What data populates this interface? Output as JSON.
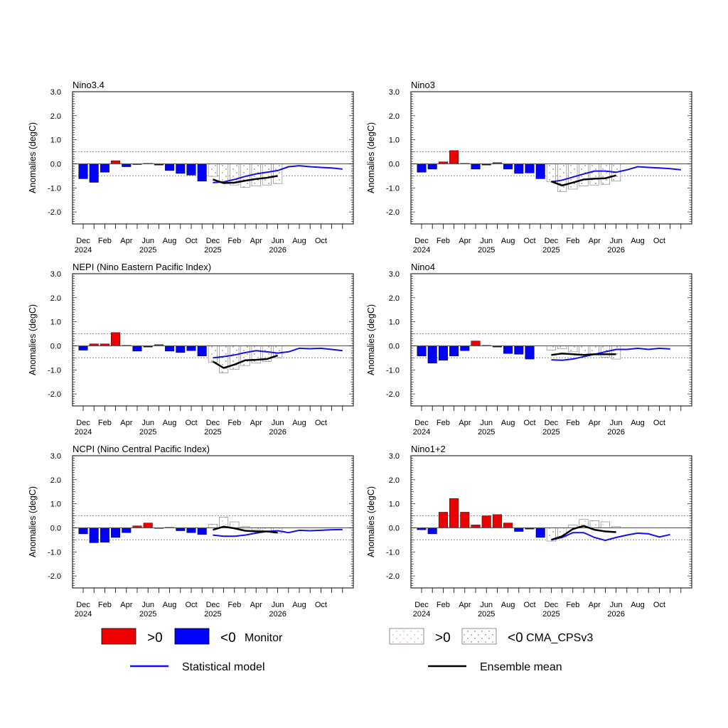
{
  "x_ticks": {
    "months": [
      "Dec",
      "Feb",
      "Apr",
      "Jun",
      "Aug",
      "Oct",
      "Dec",
      "Feb",
      "Apr",
      "Jun",
      "Aug",
      "Oct"
    ],
    "years": [
      "2024",
      "",
      "",
      "2025",
      "",
      "",
      "2025",
      "",
      "",
      "2026",
      "",
      ""
    ]
  },
  "y_axis": {
    "label": "Anomalies (degC)",
    "tick_labels": [
      "3.0",
      "2.0",
      "1.0",
      "0.0",
      "-1.0",
      "-2.0"
    ],
    "ticks": [
      3,
      2,
      1,
      0,
      -1,
      -2
    ]
  },
  "colors": {
    "positive": "#ee0000",
    "negative": "#0000ff",
    "statistical": "#1010ee",
    "ensemble": "#000000",
    "threshold": "#999999",
    "forecast_dots_pos": "#f08080",
    "forecast_dots_neg": "#555555"
  },
  "legend": {
    "monitor_pos": ">0",
    "monitor_neg": "<0",
    "monitor_label": "Monitor",
    "cma_pos": ">0",
    "cma_neg": "<0",
    "cma_label": "CMA_CPSv3",
    "stat_label": "Statistical model",
    "ens_label": "Ensemble mean"
  },
  "chart_data": [
    {
      "type": "bar",
      "title": "Nino3.4",
      "xlabel": "",
      "ylabel": "Anomalies (degC)",
      "ylim": [
        -2.5,
        3.0
      ],
      "thresholds": [
        0.5,
        -0.5
      ],
      "monitor": [
        -0.62,
        -0.77,
        -0.35,
        0.13,
        -0.12,
        -0.03,
        0.02,
        -0.05,
        -0.28,
        -0.4,
        -0.47,
        -0.72
      ],
      "cma_forecast": [
        -0.52,
        -0.75,
        -0.88,
        -0.98,
        -0.92,
        -0.88,
        -0.82
      ],
      "ensemble_mean": [
        -0.65,
        -0.8,
        -0.78,
        -0.7,
        -0.63,
        -0.58,
        -0.5
      ],
      "statistical_model": [
        -0.78,
        -0.75,
        -0.65,
        -0.52,
        -0.42,
        -0.35,
        -0.28,
        -0.12,
        -0.08,
        -0.12,
        -0.15,
        -0.17,
        -0.22
      ]
    },
    {
      "type": "bar",
      "title": "Nino3",
      "xlabel": "",
      "ylabel": "Anomalies (degC)",
      "ylim": [
        -2.5,
        3.0
      ],
      "thresholds": [
        0.5,
        -0.5
      ],
      "monitor": [
        -0.35,
        -0.22,
        0.08,
        0.55,
        0.02,
        -0.22,
        -0.05,
        0.05,
        -0.22,
        -0.4,
        -0.38,
        -0.62
      ],
      "cma_forecast": [
        -0.75,
        -1.15,
        -1.05,
        -0.92,
        -0.88,
        -0.85,
        -0.72
      ],
      "ensemble_mean": [
        -0.73,
        -0.9,
        -0.78,
        -0.65,
        -0.62,
        -0.6,
        -0.48
      ],
      "statistical_model": [
        -0.75,
        -0.68,
        -0.55,
        -0.42,
        -0.3,
        -0.3,
        -0.35,
        -0.25,
        -0.12,
        -0.15,
        -0.17,
        -0.2,
        -0.25
      ]
    },
    {
      "type": "bar",
      "title": "NEPI (Nino Eastern Pacific Index)",
      "xlabel": "",
      "ylabel": "Anomalies (degC)",
      "ylim": [
        -2.5,
        3.0
      ],
      "thresholds": [
        0.5,
        -0.5
      ],
      "monitor": [
        -0.18,
        0.08,
        0.08,
        0.55,
        0.02,
        -0.22,
        -0.05,
        0.05,
        -0.22,
        -0.28,
        -0.2,
        -0.42
      ],
      "cma_forecast": [
        -0.68,
        -1.12,
        -0.98,
        -0.82,
        -0.72,
        -0.65,
        -0.5
      ],
      "ensemble_mean": [
        -0.65,
        -0.92,
        -0.78,
        -0.6,
        -0.58,
        -0.55,
        -0.4
      ],
      "statistical_model": [
        -0.5,
        -0.45,
        -0.38,
        -0.28,
        -0.2,
        -0.25,
        -0.3,
        -0.25,
        -0.1,
        -0.12,
        -0.1,
        -0.15,
        -0.2
      ]
    },
    {
      "type": "bar",
      "title": "Nino4",
      "xlabel": "",
      "ylabel": "Anomalies (degC)",
      "ylim": [
        -2.5,
        3.0
      ],
      "thresholds": [
        0.5,
        -0.5
      ],
      "monitor": [
        -0.42,
        -0.72,
        -0.6,
        -0.42,
        -0.2,
        0.2,
        0.02,
        -0.05,
        -0.32,
        -0.35,
        -0.55
      ],
      "cma_forecast": [
        -0.18,
        -0.12,
        -0.25,
        -0.35,
        -0.38,
        -0.48,
        -0.55
      ],
      "ensemble_mean": [
        -0.38,
        -0.32,
        -0.35,
        -0.38,
        -0.35,
        -0.35,
        -0.35
      ],
      "statistical_model": [
        -0.58,
        -0.6,
        -0.55,
        -0.45,
        -0.35,
        -0.25,
        -0.15,
        -0.15,
        -0.1,
        -0.15,
        -0.1,
        -0.13
      ]
    },
    {
      "type": "bar",
      "title": "NCPI (Nino Central Pacific Index)",
      "xlabel": "",
      "ylabel": "Anomalies (degC)",
      "ylim": [
        -2.5,
        3.0
      ],
      "thresholds": [
        0.5,
        -0.5
      ],
      "monitor": [
        -0.25,
        -0.62,
        -0.6,
        -0.4,
        -0.2,
        0.08,
        0.2,
        -0.02,
        0.02,
        -0.12,
        -0.2,
        -0.28
      ],
      "cma_forecast": [
        0.15,
        0.45,
        0.25,
        0.05,
        -0.08,
        -0.15,
        -0.22
      ],
      "ensemble_mean": [
        -0.08,
        0.05,
        -0.02,
        -0.12,
        -0.15,
        -0.15,
        -0.2
      ],
      "statistical_model": [
        -0.3,
        -0.35,
        -0.35,
        -0.3,
        -0.22,
        -0.15,
        -0.12,
        -0.2,
        -0.1,
        -0.12,
        -0.1,
        -0.08,
        -0.07
      ]
    },
    {
      "type": "bar",
      "title": "Nino1+2",
      "xlabel": "",
      "ylabel": "Anomalies (degC)",
      "ylim": [
        -2.5,
        3.0
      ],
      "thresholds": [
        0.5,
        -0.5
      ],
      "monitor": [
        -0.08,
        -0.25,
        0.65,
        1.22,
        0.65,
        0.12,
        0.5,
        0.55,
        0.2,
        -0.15,
        -0.05,
        -0.4
      ],
      "cma_forecast": [
        -0.55,
        -0.38,
        0.12,
        0.35,
        0.3,
        0.25,
        0.05
      ],
      "ensemble_mean": [
        -0.5,
        -0.35,
        -0.05,
        0.08,
        -0.08,
        -0.15,
        -0.18
      ],
      "statistical_model": [
        -0.5,
        -0.4,
        -0.2,
        -0.2,
        -0.4,
        -0.52,
        -0.4,
        -0.3,
        -0.22,
        -0.25,
        -0.38,
        -0.28
      ]
    }
  ]
}
